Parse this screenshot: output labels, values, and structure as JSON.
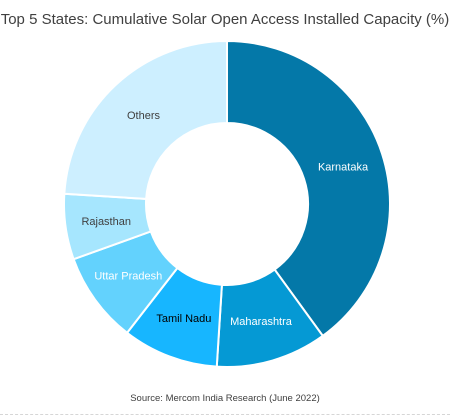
{
  "chart_data": {
    "type": "pie",
    "donut": true,
    "title": "Top 5 States: Cumulative Solar Open Access Installed Capacity (%)",
    "slices": [
      {
        "label": "Karnataka",
        "value": 40,
        "color": "#0478a8",
        "text_color": "#ffffff"
      },
      {
        "label": "Maharashtra",
        "value": 11,
        "color": "#0599d4",
        "text_color": "#ffffff"
      },
      {
        "label": "Tamil Nadu",
        "value": 9.5,
        "color": "#17b6ff",
        "text_color": "#000000"
      },
      {
        "label": "Uttar Pradesh",
        "value": 9,
        "color": "#63d2fd",
        "text_color": "#ffffff"
      },
      {
        "label": "Rajasthan",
        "value": 6.5,
        "color": "#a6e6fe",
        "text_color": "#404040"
      },
      {
        "label": "Others",
        "value": 24,
        "color": "#cdefff",
        "text_color": "#404040"
      }
    ],
    "source": "Source: Mercom  India Research (June 2022)"
  }
}
